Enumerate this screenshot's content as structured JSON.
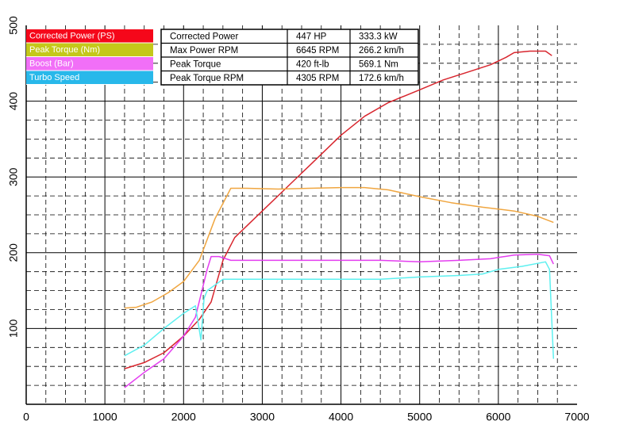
{
  "chart_data": {
    "type": "line",
    "xlim": [
      0,
      7000
    ],
    "ylim": [
      0,
      500
    ],
    "x_ticks": [
      "0",
      "1000",
      "2000",
      "3000",
      "4000",
      "5000",
      "6000",
      "7000"
    ],
    "y_ticks": [
      "100",
      "200",
      "300",
      "400",
      "500"
    ],
    "grid": true,
    "legend_position": "top-left",
    "series": [
      {
        "name": "Corrected Power (PS)",
        "color": "#d8262e",
        "legend_color": "#f5071a",
        "points": [
          [
            1250,
            47
          ],
          [
            1500,
            55
          ],
          [
            1750,
            68
          ],
          [
            2000,
            90
          ],
          [
            2200,
            112
          ],
          [
            2350,
            135
          ],
          [
            2500,
            190
          ],
          [
            2650,
            220
          ],
          [
            2800,
            235
          ],
          [
            3000,
            255
          ],
          [
            3300,
            285
          ],
          [
            3600,
            315
          ],
          [
            4000,
            355
          ],
          [
            4300,
            380
          ],
          [
            4600,
            398
          ],
          [
            5000,
            415
          ],
          [
            5300,
            428
          ],
          [
            5600,
            438
          ],
          [
            5900,
            448
          ],
          [
            6100,
            458
          ],
          [
            6200,
            464
          ],
          [
            6400,
            466
          ],
          [
            6600,
            466
          ],
          [
            6680,
            460
          ]
        ]
      },
      {
        "name": "Peak Torque (Nm)",
        "legend_color": "#c4c81a",
        "color": "#f0a640",
        "points": [
          [
            1250,
            127
          ],
          [
            1400,
            128
          ],
          [
            1600,
            135
          ],
          [
            1800,
            147
          ],
          [
            2000,
            162
          ],
          [
            2200,
            190
          ],
          [
            2400,
            245
          ],
          [
            2600,
            285
          ],
          [
            2800,
            285
          ],
          [
            3200,
            284
          ],
          [
            3600,
            285
          ],
          [
            4000,
            286
          ],
          [
            4300,
            286
          ],
          [
            4600,
            283
          ],
          [
            5000,
            274
          ],
          [
            5400,
            266
          ],
          [
            5800,
            260
          ],
          [
            6200,
            255
          ],
          [
            6500,
            248
          ],
          [
            6700,
            240
          ]
        ]
      },
      {
        "name": "Boost (Bar)",
        "color": "#e43df0",
        "legend_color": "#f16ff7",
        "points": [
          [
            1250,
            22
          ],
          [
            1500,
            42
          ],
          [
            1750,
            60
          ],
          [
            2000,
            90
          ],
          [
            2150,
            115
          ],
          [
            2300,
            178
          ],
          [
            2350,
            195
          ],
          [
            2450,
            195
          ],
          [
            2600,
            190
          ],
          [
            3000,
            190
          ],
          [
            3500,
            190
          ],
          [
            4000,
            190
          ],
          [
            4500,
            190
          ],
          [
            5000,
            188
          ],
          [
            5500,
            190
          ],
          [
            5900,
            192
          ],
          [
            6200,
            197
          ],
          [
            6500,
            198
          ],
          [
            6650,
            196
          ],
          [
            6700,
            185
          ]
        ]
      },
      {
        "name": "Turbo Speed",
        "color": "#5df0f0",
        "legend_color": "#28b8ea",
        "points": [
          [
            1250,
            64
          ],
          [
            1500,
            78
          ],
          [
            1750,
            100
          ],
          [
            2000,
            120
          ],
          [
            2150,
            130
          ],
          [
            2220,
            85
          ],
          [
            2260,
            140
          ],
          [
            2300,
            150
          ],
          [
            2500,
            165
          ],
          [
            3000,
            165
          ],
          [
            3500,
            165
          ],
          [
            4000,
            165
          ],
          [
            4500,
            165
          ],
          [
            5000,
            168
          ],
          [
            5500,
            170
          ],
          [
            5800,
            172
          ],
          [
            6000,
            178
          ],
          [
            6300,
            182
          ],
          [
            6600,
            188
          ],
          [
            6650,
            178
          ],
          [
            6700,
            60
          ]
        ]
      }
    ]
  },
  "stats_table": {
    "rows": [
      [
        "Corrected Power",
        "447 HP",
        "333.3 kW"
      ],
      [
        "Max Power RPM",
        "6645 RPM",
        "266.2 km/h"
      ],
      [
        "Peak Torque",
        "420 ft-lb",
        "569.1 Nm"
      ],
      [
        "Peak Torque RPM",
        "4305 RPM",
        "172.6 km/h"
      ]
    ]
  }
}
